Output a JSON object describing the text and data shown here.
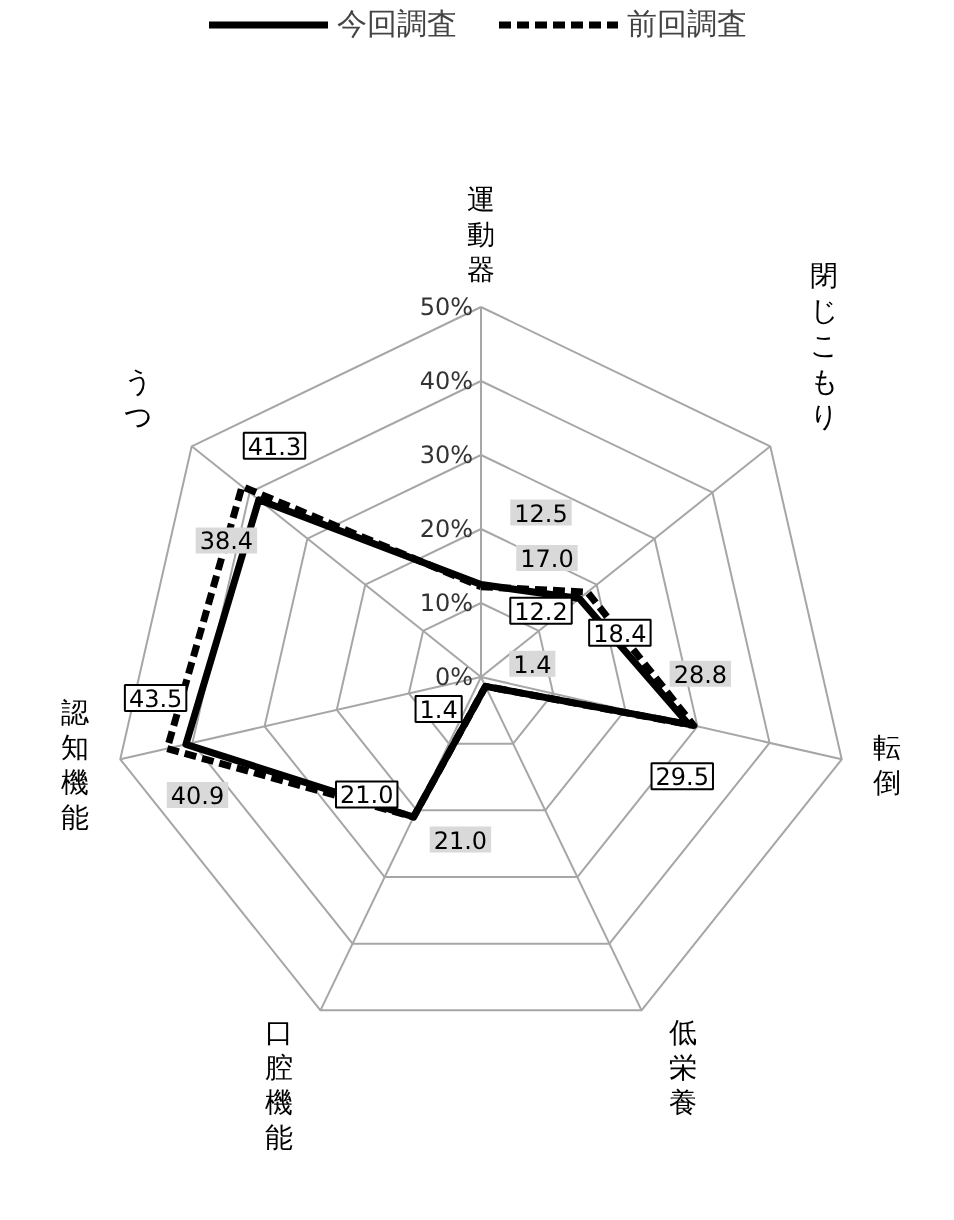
{
  "chart_data": {
    "type": "radar",
    "categories": [
      "運動器",
      "閉じこもり",
      "転倒",
      "低栄養",
      "口腔機能",
      "認知機能",
      "うつ"
    ],
    "series": [
      {
        "name": "今回調査",
        "color": "#000000",
        "line_style": "solid",
        "values": [
          12.5,
          17.0,
          28.8,
          1.4,
          21.0,
          40.9,
          38.4
        ],
        "value_labels": [
          "12.5",
          "17.0",
          "28.8",
          "1.4",
          "21.0",
          "40.9",
          "38.4"
        ]
      },
      {
        "name": "前回調査",
        "color": "#000000",
        "line_style": "dashed",
        "values": [
          12.2,
          18.4,
          29.5,
          1.4,
          21.0,
          43.5,
          41.3
        ],
        "value_labels": [
          "12.2",
          "18.4",
          "29.5",
          "1.4",
          "21.0",
          "43.5",
          "41.3"
        ]
      }
    ],
    "ylim": [
      0,
      50
    ],
    "yticks": [
      {
        "value": 0,
        "label": "0%"
      },
      {
        "value": 10,
        "label": "10%"
      },
      {
        "value": 20,
        "label": "20%"
      },
      {
        "value": 30,
        "label": "30%"
      },
      {
        "value": 40,
        "label": "40%"
      },
      {
        "value": 50,
        "label": "50%"
      }
    ],
    "grid": true,
    "legend": "top",
    "marker": "none"
  }
}
